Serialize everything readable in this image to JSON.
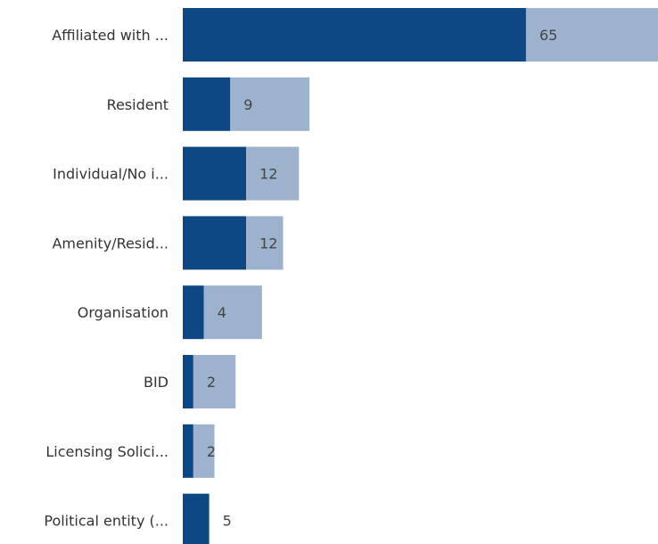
{
  "chart_data": {
    "type": "bar",
    "orientation": "horizontal",
    "categories": [
      "Affiliated with ...",
      "Resident",
      "Individual/No i...",
      "Amenity/Resid...",
      "Organisation",
      "BID",
      "Licensing Solici...",
      "Political entity (..."
    ],
    "series": [
      {
        "values": [
          65,
          9,
          12,
          12,
          4,
          2,
          2,
          5
        ]
      },
      {
        "values": [
          25,
          15,
          10,
          7,
          11,
          8,
          4,
          0
        ]
      }
    ],
    "data_labels": [
      "65",
      "9",
      "12",
      "12",
      "4",
      "2",
      "2",
      "5"
    ],
    "xlim": [
      0,
      90
    ],
    "grid": false,
    "legend": "none",
    "colors": {
      "primary": "#0d4784",
      "secondary": "#9db2cc",
      "label_text": "#333333",
      "value_text": "#444444"
    }
  }
}
